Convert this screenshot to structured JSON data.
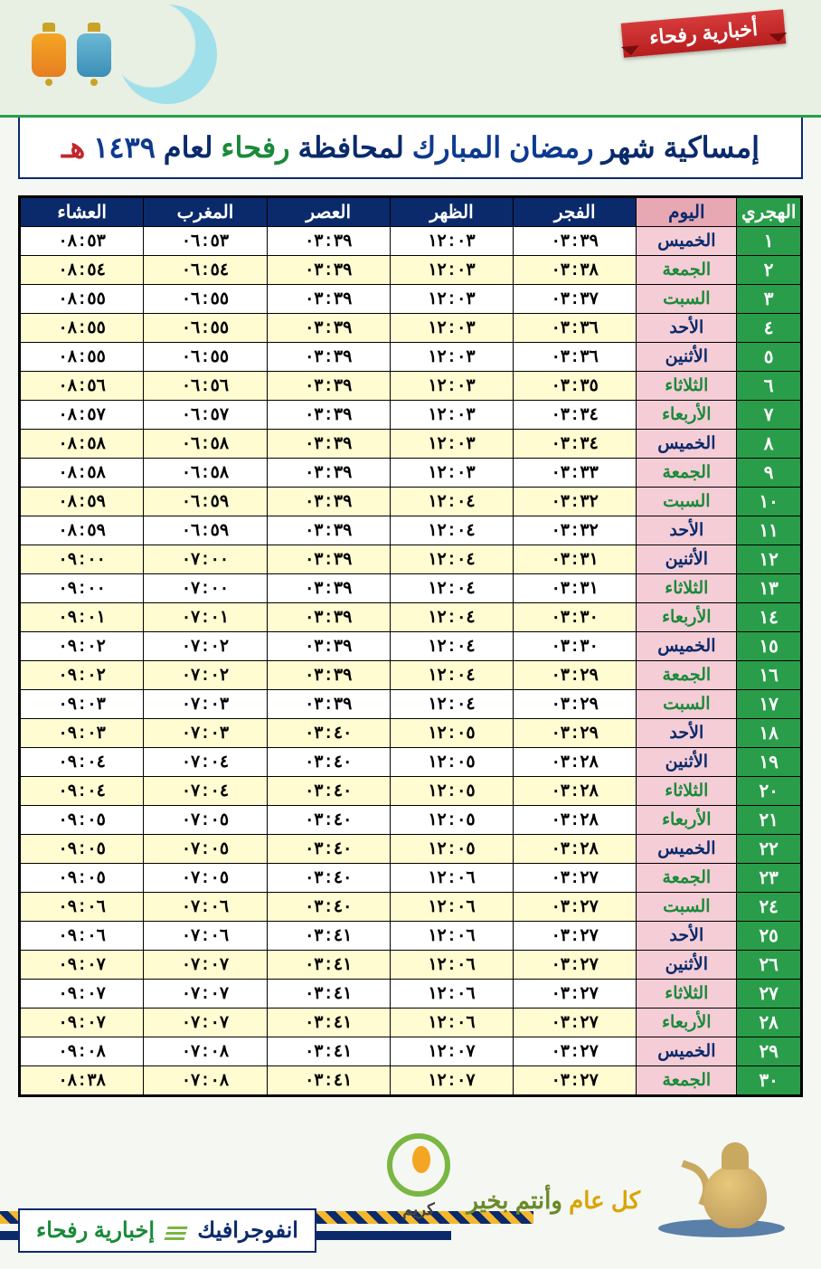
{
  "header": {
    "ribbon": "أخبارية رفحاء",
    "title_pre": "إمساكية شهر ",
    "title_ramadan": "رمضان المبارك",
    "title_mid": " لمحافظة ",
    "title_city": "رفحاء",
    "title_post": " لعام ",
    "title_year": "١٤٣٩",
    "title_suffix": " هـ"
  },
  "table": {
    "headers": {
      "hijri": "الهجري",
      "day": "اليوم",
      "fajr": "الفجر",
      "dhuhr": "الظهر",
      "asr": "العصر",
      "maghrib": "المغرب",
      "isha": "العشاء"
    },
    "day_colors": {
      "الخميس": "blue",
      "الجمعة": "green",
      "السبت": "green",
      "الأحد": "blue",
      "الأثنين": "blue",
      "الثلاثاء": "green",
      "الأربعاء": "green"
    },
    "hijri_nums": [
      "١",
      "٢",
      "٣",
      "٤",
      "٥",
      "٦",
      "٧",
      "٨",
      "٩",
      "١٠",
      "١١",
      "١٢",
      "١٣",
      "١٤",
      "١٥",
      "١٦",
      "١٧",
      "١٨",
      "١٩",
      "٢٠",
      "٢١",
      "٢٢",
      "٢٣",
      "٢٤",
      "٢٥",
      "٢٦",
      "٢٧",
      "٢٨",
      "٢٩",
      "٣٠"
    ],
    "rows": [
      {
        "d": "الخميس",
        "f": "٠٣:٣٩",
        "z": "١٢:٠٣",
        "a": "٠٣:٣٩",
        "m": "٠٦:٥٣",
        "i": "٠٨:٥٣"
      },
      {
        "d": "الجمعة",
        "f": "٠٣:٣٨",
        "z": "١٢:٠٣",
        "a": "٠٣:٣٩",
        "m": "٠٦:٥٤",
        "i": "٠٨:٥٤"
      },
      {
        "d": "السبت",
        "f": "٠٣:٣٧",
        "z": "١٢:٠٣",
        "a": "٠٣:٣٩",
        "m": "٠٦:٥٥",
        "i": "٠٨:٥٥"
      },
      {
        "d": "الأحد",
        "f": "٠٣:٣٦",
        "z": "١٢:٠٣",
        "a": "٠٣:٣٩",
        "m": "٠٦:٥٥",
        "i": "٠٨:٥٥"
      },
      {
        "d": "الأثنين",
        "f": "٠٣:٣٦",
        "z": "١٢:٠٣",
        "a": "٠٣:٣٩",
        "m": "٠٦:٥٥",
        "i": "٠٨:٥٥"
      },
      {
        "d": "الثلاثاء",
        "f": "٠٣:٣٥",
        "z": "١٢:٠٣",
        "a": "٠٣:٣٩",
        "m": "٠٦:٥٦",
        "i": "٠٨:٥٦"
      },
      {
        "d": "الأربعاء",
        "f": "٠٣:٣٤",
        "z": "١٢:٠٣",
        "a": "٠٣:٣٩",
        "m": "٠٦:٥٧",
        "i": "٠٨:٥٧"
      },
      {
        "d": "الخميس",
        "f": "٠٣:٣٤",
        "z": "١٢:٠٣",
        "a": "٠٣:٣٩",
        "m": "٠٦:٥٨",
        "i": "٠٨:٥٨"
      },
      {
        "d": "الجمعة",
        "f": "٠٣:٣٣",
        "z": "١٢:٠٣",
        "a": "٠٣:٣٩",
        "m": "٠٦:٥٨",
        "i": "٠٨:٥٨"
      },
      {
        "d": "السبت",
        "f": "٠٣:٣٢",
        "z": "١٢:٠٤",
        "a": "٠٣:٣٩",
        "m": "٠٦:٥٩",
        "i": "٠٨:٥٩"
      },
      {
        "d": "الأحد",
        "f": "٠٣:٣٢",
        "z": "١٢:٠٤",
        "a": "٠٣:٣٩",
        "m": "٠٦:٥٩",
        "i": "٠٨:٥٩"
      },
      {
        "d": "الأثنين",
        "f": "٠٣:٣١",
        "z": "١٢:٠٤",
        "a": "٠٣:٣٩",
        "m": "٠٧:٠٠",
        "i": "٠٩:٠٠"
      },
      {
        "d": "الثلاثاء",
        "f": "٠٣:٣١",
        "z": "١٢:٠٤",
        "a": "٠٣:٣٩",
        "m": "٠٧:٠٠",
        "i": "٠٩:٠٠"
      },
      {
        "d": "الأربعاء",
        "f": "٠٣:٣٠",
        "z": "١٢:٠٤",
        "a": "٠٣:٣٩",
        "m": "٠٧:٠١",
        "i": "٠٩:٠١"
      },
      {
        "d": "الخميس",
        "f": "٠٣:٣٠",
        "z": "١٢:٠٤",
        "a": "٠٣:٣٩",
        "m": "٠٧:٠٢",
        "i": "٠٩:٠٢"
      },
      {
        "d": "الجمعة",
        "f": "٠٣:٢٩",
        "z": "١٢:٠٤",
        "a": "٠٣:٣٩",
        "m": "٠٧:٠٢",
        "i": "٠٩:٠٢"
      },
      {
        "d": "السبت",
        "f": "٠٣:٢٩",
        "z": "١٢:٠٤",
        "a": "٠٣:٣٩",
        "m": "٠٧:٠٣",
        "i": "٠٩:٠٣"
      },
      {
        "d": "الأحد",
        "f": "٠٣:٢٩",
        "z": "١٢:٠٥",
        "a": "٠٣:٤٠",
        "m": "٠٧:٠٣",
        "i": "٠٩:٠٣"
      },
      {
        "d": "الأثنين",
        "f": "٠٣:٢٨",
        "z": "١٢:٠٥",
        "a": "٠٣:٤٠",
        "m": "٠٧:٠٤",
        "i": "٠٩:٠٤"
      },
      {
        "d": "الثلاثاء",
        "f": "٠٣:٢٨",
        "z": "١٢:٠٥",
        "a": "٠٣:٤٠",
        "m": "٠٧:٠٤",
        "i": "٠٩:٠٤"
      },
      {
        "d": "الأربعاء",
        "f": "٠٣:٢٨",
        "z": "١٢:٠٥",
        "a": "٠٣:٤٠",
        "m": "٠٧:٠٥",
        "i": "٠٩:٠٥"
      },
      {
        "d": "الخميس",
        "f": "٠٣:٢٨",
        "z": "١٢:٠٥",
        "a": "٠٣:٤٠",
        "m": "٠٧:٠٥",
        "i": "٠٩:٠٥"
      },
      {
        "d": "الجمعة",
        "f": "٠٣:٢٧",
        "z": "١٢:٠٦",
        "a": "٠٣:٤٠",
        "m": "٠٧:٠٥",
        "i": "٠٩:٠٥"
      },
      {
        "d": "السبت",
        "f": "٠٣:٢٧",
        "z": "١٢:٠٦",
        "a": "٠٣:٤٠",
        "m": "٠٧:٠٦",
        "i": "٠٩:٠٦"
      },
      {
        "d": "الأحد",
        "f": "٠٣:٢٧",
        "z": "١٢:٠٦",
        "a": "٠٣:٤١",
        "m": "٠٧:٠٦",
        "i": "٠٩:٠٦"
      },
      {
        "d": "الأثنين",
        "f": "٠٣:٢٧",
        "z": "١٢:٠٦",
        "a": "٠٣:٤١",
        "m": "٠٧:٠٧",
        "i": "٠٩:٠٧"
      },
      {
        "d": "الثلاثاء",
        "f": "٠٣:٢٧",
        "z": "١٢:٠٦",
        "a": "٠٣:٤١",
        "m": "٠٧:٠٧",
        "i": "٠٩:٠٧"
      },
      {
        "d": "الأربعاء",
        "f": "٠٣:٢٧",
        "z": "١٢:٠٦",
        "a": "٠٣:٤١",
        "m": "٠٧:٠٧",
        "i": "٠٩:٠٧"
      },
      {
        "d": "الخميس",
        "f": "٠٣:٢٧",
        "z": "١٢:٠٧",
        "a": "٠٣:٤١",
        "m": "٠٧:٠٨",
        "i": "٠٩:٠٨"
      },
      {
        "d": "الجمعة",
        "f": "٠٣:٢٧",
        "z": "١٢:٠٧",
        "a": "٠٣:٤١",
        "m": "٠٧:٠٨",
        "i": "٠٨:٣٨"
      }
    ]
  },
  "footer": {
    "greeting_1": "كل عام ",
    "greeting_2": "وأنتم بخير",
    "kareem": "كريم",
    "brand_infographic": "انفوجرافيك",
    "brand_name": "إخبارية رفحاء"
  },
  "colors": {
    "navy": "#0a2a6b",
    "green": "#2a9d4a",
    "pink": "#f5cdd6",
    "yellow": "#fffcd1",
    "red_ribbon": "#c1272d",
    "gold": "#f4b82e"
  }
}
